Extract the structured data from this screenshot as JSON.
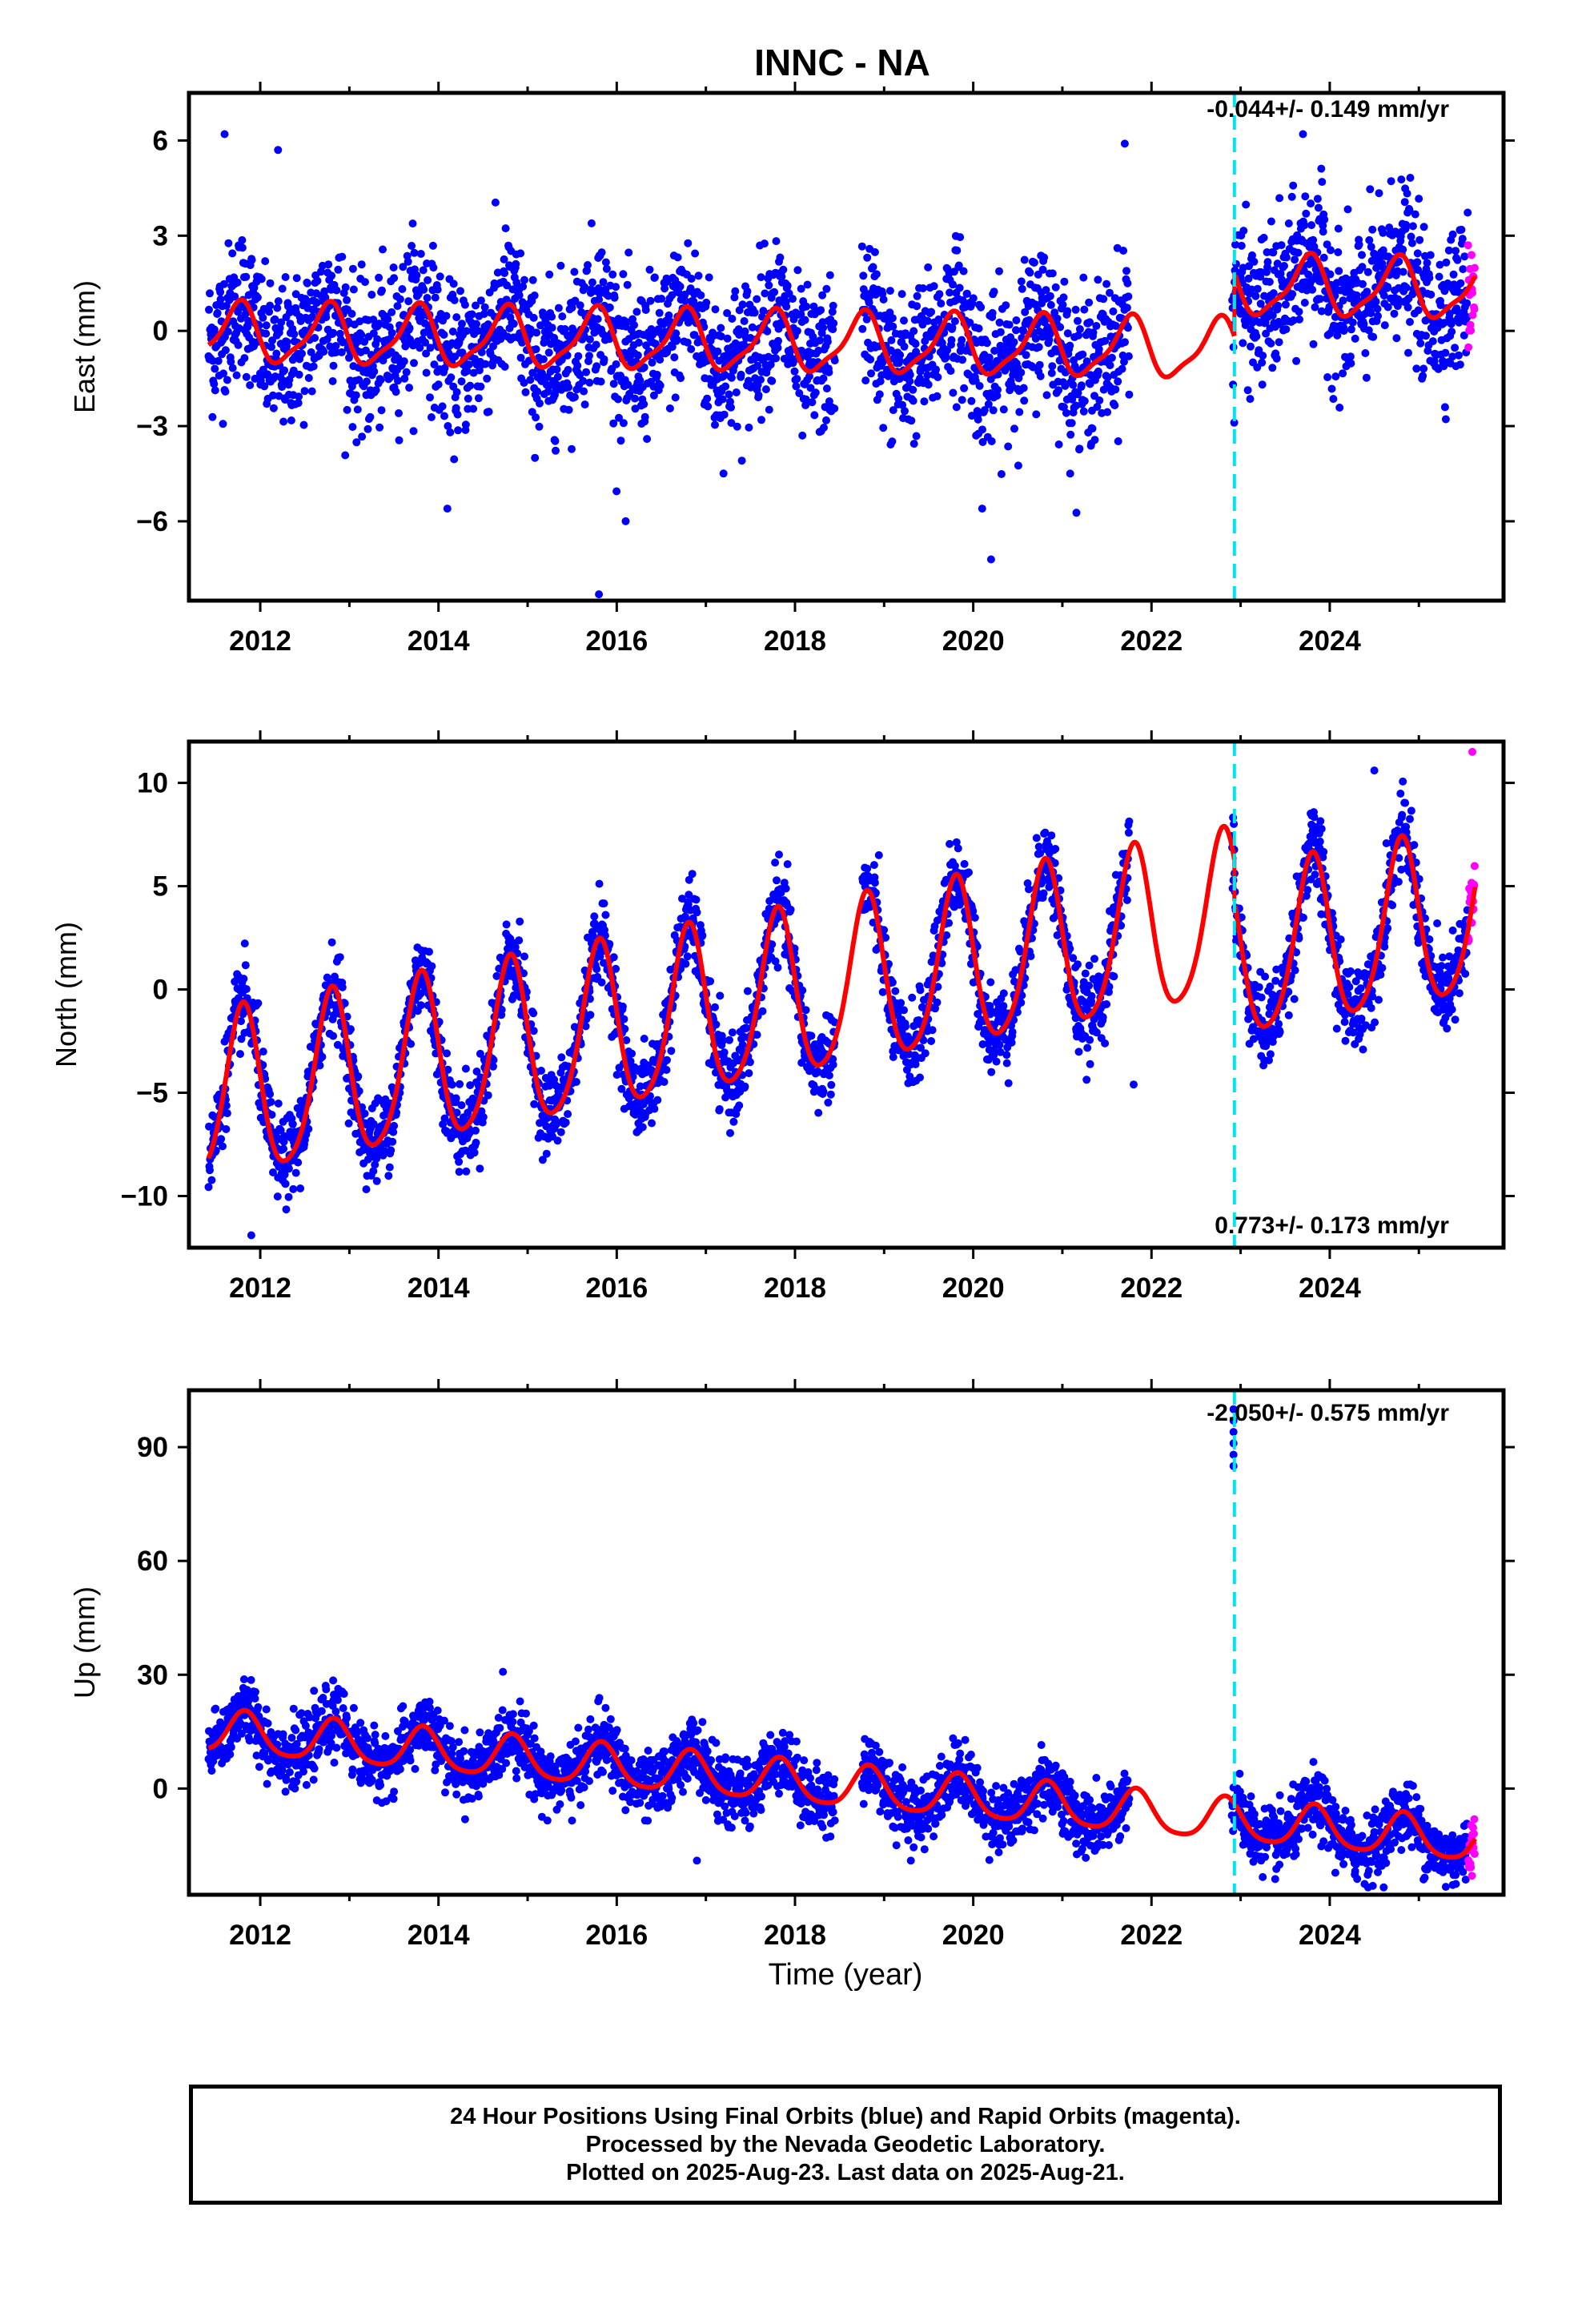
{
  "figure": {
    "title": "INNC - NA",
    "xlabel": "Time (year)",
    "caption": [
      "24 Hour Positions Using Final Orbits (blue) and Rapid Orbits (magenta).",
      "Processed by the Nevada Geodetic Laboratory.",
      "Plotted on 2025-Aug-23. Last data on 2025-Aug-21."
    ]
  },
  "colors": {
    "final_orbits": "#0000ff",
    "rapid_orbits": "#ff00ff",
    "model": "#ff0000",
    "event_line": "#00e5ee"
  },
  "chart_data": [
    {
      "type": "scatter",
      "component": "East",
      "ylabel": "East (mm)",
      "rate_label": "-0.044+/- 0.149 mm/yr",
      "xlim": [
        2011.2,
        2025.95
      ],
      "ylim": [
        -8.5,
        7.5
      ],
      "xticks": [
        2012,
        2014,
        2016,
        2018,
        2020,
        2022,
        2024
      ],
      "xtick_labels": [
        "2012",
        "2014",
        "2016",
        "2018",
        "2020",
        "2022",
        "2024"
      ],
      "yticks": [
        -6,
        -3,
        0,
        3,
        6
      ],
      "ytick_labels": [
        "−6",
        "−3",
        "0",
        "3",
        "6"
      ],
      "event_line_x": 2022.93,
      "data_start": 2011.42,
      "data_end": 2025.63,
      "rapid_start": 2025.55,
      "gap": [
        2021.75,
        2022.9
      ],
      "model": {
        "offset": -0.1,
        "slope": -0.044,
        "annual_amp": 0.9,
        "annual_phase": 0.5,
        "semi_amp": 0.25,
        "step_at": 2022.93,
        "step": 2.0
      },
      "noise_sd": 1.15,
      "outliers": [
        [
          2011.6,
          6.2
        ],
        [
          2012.2,
          5.7
        ],
        [
          2014.1,
          -5.6
        ],
        [
          2015.8,
          -8.3
        ],
        [
          2016.1,
          -6.0
        ],
        [
          2020.2,
          -7.2
        ],
        [
          2020.1,
          -5.6
        ],
        [
          2021.7,
          5.9
        ],
        [
          2023.7,
          6.2
        ]
      ]
    },
    {
      "type": "scatter",
      "component": "North",
      "ylabel": "North (mm)",
      "rate_label": "0.773+/- 0.173 mm/yr",
      "xlim": [
        2011.2,
        2025.95
      ],
      "ylim": [
        -12.5,
        12
      ],
      "xticks": [
        2012,
        2014,
        2016,
        2018,
        2020,
        2022,
        2024
      ],
      "xtick_labels": [
        "2012",
        "2014",
        "2016",
        "2018",
        "2020",
        "2022",
        "2024"
      ],
      "yticks": [
        -10,
        -5,
        0,
        5,
        10
      ],
      "ytick_labels": [
        "−10",
        "−5",
        "0",
        "5",
        "10"
      ],
      "event_line_x": 2022.93,
      "data_start": 2011.42,
      "data_end": 2025.63,
      "rapid_start": 2025.55,
      "gap": [
        2021.75,
        2022.9
      ],
      "model": {
        "offset": -5.5,
        "slope": 0.773,
        "annual_amp": 4.0,
        "annual_phase": 0.55,
        "semi_amp": 0.6,
        "step_at": 2022.93,
        "step": -2.0
      },
      "noise_sd": 1.0,
      "outliers": [
        [
          2011.9,
          -11.9
        ],
        [
          2021.8,
          -4.6
        ],
        [
          2024.5,
          10.6
        ],
        [
          2025.6,
          11.5
        ]
      ]
    },
    {
      "type": "scatter",
      "component": "Up",
      "ylabel": "Up (mm)",
      "rate_label": "-2.050+/- 0.575 mm/yr",
      "xlim": [
        2011.2,
        2025.95
      ],
      "ylim": [
        -28,
        105
      ],
      "xticks": [
        2012,
        2014,
        2016,
        2018,
        2020,
        2022,
        2024
      ],
      "xtick_labels": [
        "2012",
        "2014",
        "2016",
        "2018",
        "2020",
        "2022",
        "2024"
      ],
      "yticks": [
        0,
        30,
        60,
        90
      ],
      "ytick_labels": [
        "0",
        "30",
        "60",
        "90"
      ],
      "event_line_x": 2022.93,
      "data_start": 2011.42,
      "data_end": 2025.63,
      "rapid_start": 2025.55,
      "gap": [
        2021.75,
        2022.9
      ],
      "model": {
        "offset": 15,
        "slope": -2.05,
        "annual_amp": 5.5,
        "annual_phase": 0.58,
        "semi_amp": 1.0,
        "step_at": 2022.93,
        "step": 0
      },
      "noise_sd": 4.2,
      "outliers": [
        [
          2022.92,
          100
        ],
        [
          2022.92,
          97
        ],
        [
          2022.92,
          94
        ],
        [
          2022.92,
          91
        ],
        [
          2022.92,
          88
        ],
        [
          2022.92,
          85
        ],
        [
          2016.9,
          -19
        ],
        [
          2019.3,
          -19
        ]
      ]
    }
  ]
}
